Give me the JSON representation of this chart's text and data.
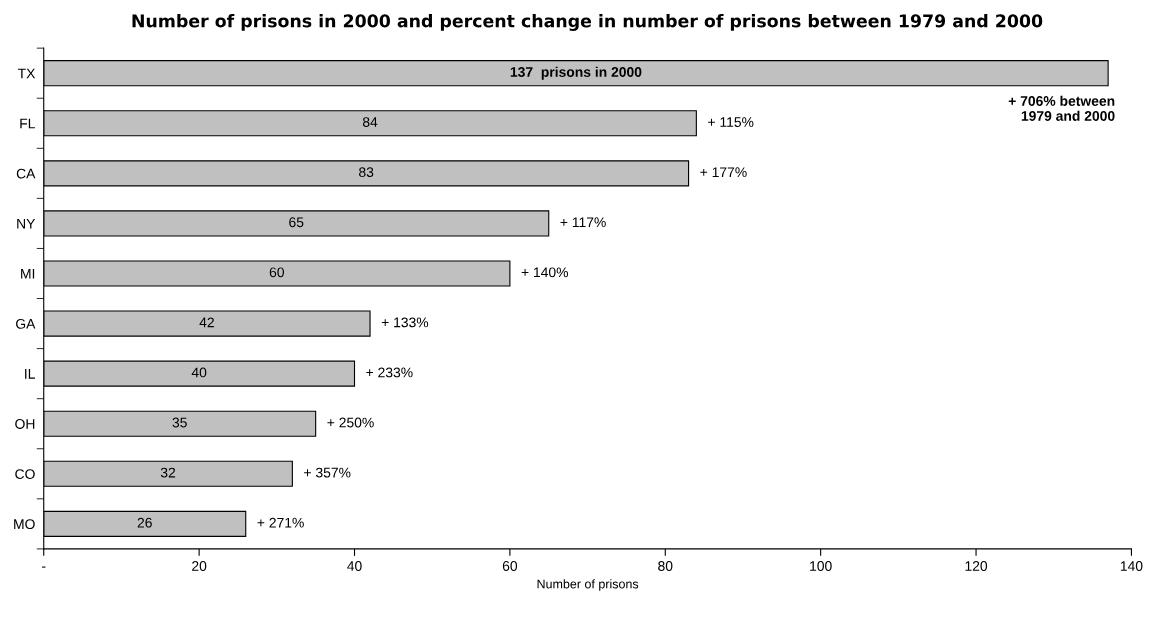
{
  "chart_data": {
    "type": "bar",
    "orientation": "horizontal",
    "title": "Number of prisons in 2000 and percent change in number of prisons between 1979 and 2000",
    "xlabel": "Number of prisons",
    "categories": [
      "TX",
      "FL",
      "CA",
      "NY",
      "MI",
      "GA",
      "IL",
      "OH",
      "CO",
      "MO"
    ],
    "values": [
      137,
      84,
      83,
      65,
      60,
      42,
      40,
      35,
      32,
      26
    ],
    "color": "#c0c0c0",
    "value_labels": [
      "137  prisons in 2000",
      "84",
      "83",
      "65",
      "60",
      "42",
      "40",
      "35",
      "32",
      "26"
    ],
    "xlim": [
      0,
      140
    ],
    "xticks": [
      {
        "value": 0,
        "label": "-"
      },
      20,
      40,
      60,
      80,
      100,
      120,
      140
    ],
    "grid": false,
    "annotations": [
      "+ 706% between\n1979 and 2000",
      {
        "text": "+ 115%",
        "x": 84,
        "y": "FL"
      },
      {
        "text": "+ 177%",
        "x": 83,
        "y": "CA"
      },
      {
        "text": "+ 117%",
        "x": 65,
        "y": "NY"
      },
      {
        "text": "+ 140%",
        "x": 60,
        "y": "MI"
      },
      {
        "text": "+ 133%",
        "x": 42,
        "y": "GA"
      },
      {
        "text": "+ 233%",
        "x": 40,
        "y": "IL"
      },
      {
        "text": "+ 250%",
        "x": 35,
        "y": "OH"
      },
      {
        "text": "+ 357%",
        "x": 32,
        "y": "CO"
      },
      {
        "text": "+ 271%",
        "x": 26,
        "y": "MO"
      }
    ]
  }
}
